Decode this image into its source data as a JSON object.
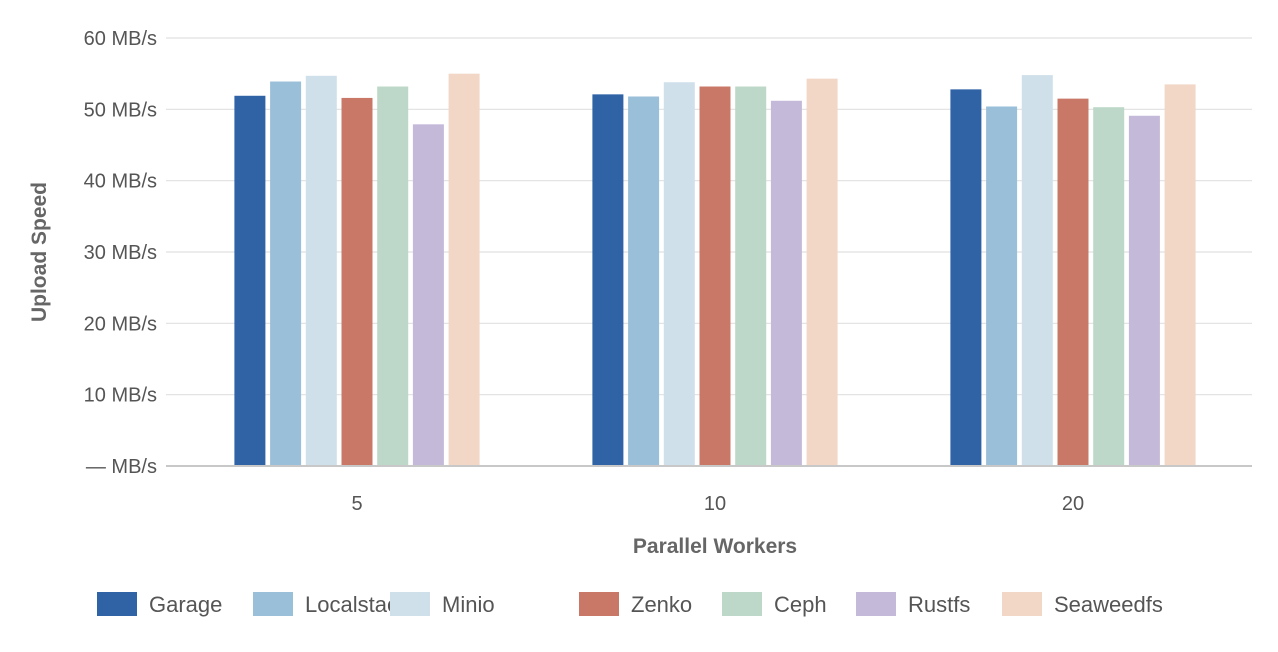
{
  "chart_data": {
    "type": "bar",
    "categories": [
      "5",
      "10",
      "20"
    ],
    "series": [
      {
        "name": "Garage",
        "color": "#2f63a6",
        "values": [
          51.9,
          52.1,
          52.8
        ]
      },
      {
        "name": "Localstack",
        "color": "#9abfd9",
        "values": [
          53.9,
          51.8,
          50.4
        ]
      },
      {
        "name": "Minio",
        "color": "#d0e0eb",
        "values": [
          54.7,
          53.8,
          54.8
        ]
      },
      {
        "name": "Zenko",
        "color": "#c97868",
        "values": [
          51.6,
          53.2,
          51.5
        ]
      },
      {
        "name": "Ceph",
        "color": "#bdd8c8",
        "values": [
          53.2,
          53.2,
          50.3
        ]
      },
      {
        "name": "Rustfs",
        "color": "#c4b9d9",
        "values": [
          47.9,
          51.2,
          49.1
        ]
      },
      {
        "name": "Seaweedfs",
        "color": "#f2d7c6",
        "values": [
          55.0,
          54.3,
          53.5
        ]
      }
    ],
    "ylim": [
      0,
      60
    ],
    "yticks": [
      {
        "value": 60,
        "label": "60 MB/s"
      },
      {
        "value": 50,
        "label": "50 MB/s"
      },
      {
        "value": 40,
        "label": "40 MB/s"
      },
      {
        "value": 30,
        "label": "30 MB/s"
      },
      {
        "value": 20,
        "label": "20 MB/s"
      },
      {
        "value": 10,
        "label": "10 MB/s"
      },
      {
        "value": 0,
        "label": "— MB/s"
      }
    ],
    "xlabel": "Parallel Workers",
    "ylabel": "Upload Speed",
    "grid": true,
    "legend_position": "bottom"
  }
}
